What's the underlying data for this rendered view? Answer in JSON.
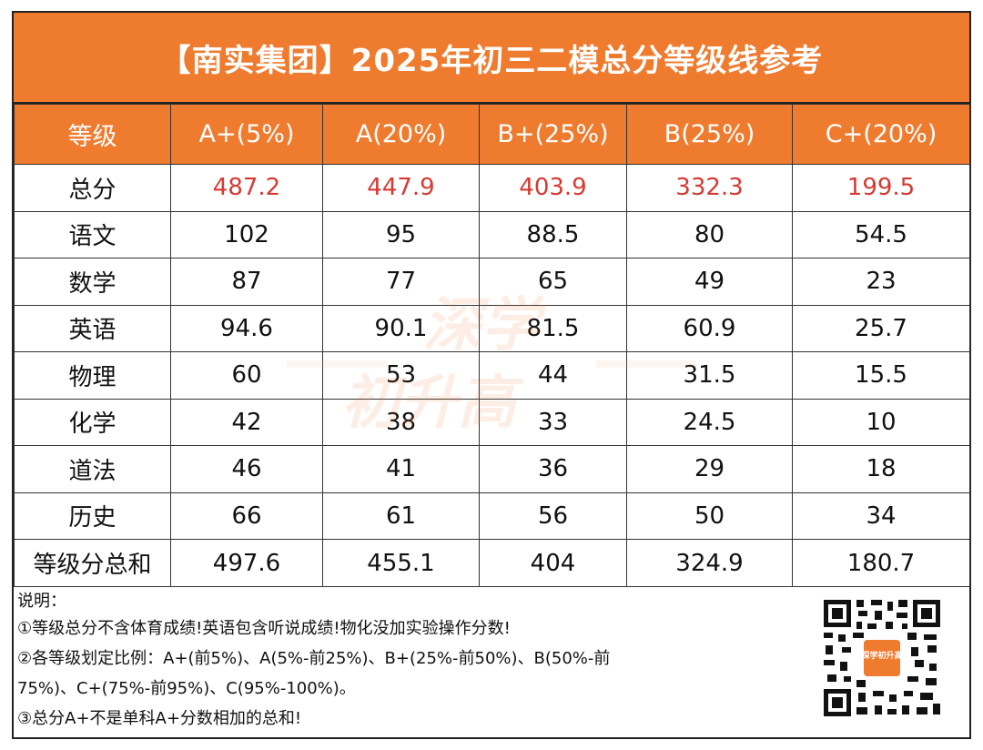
{
  "title": "【南实集团】2025年初三二模总分等级线参考",
  "header": {
    "label": "等级",
    "grades": [
      "A+(5%)",
      "A(20%)",
      "B+(25%)",
      "B(25%)",
      "C+(20%)"
    ]
  },
  "rows": [
    {
      "subject": "总分",
      "values": [
        "487.2",
        "447.9",
        "403.9",
        "332.3",
        "199.5"
      ]
    },
    {
      "subject": "语文",
      "values": [
        "102",
        "95",
        "88.5",
        "80",
        "54.5"
      ]
    },
    {
      "subject": "数学",
      "values": [
        "87",
        "77",
        "65",
        "49",
        "23"
      ]
    },
    {
      "subject": "英语",
      "values": [
        "94.6",
        "90.1",
        "81.5",
        "60.9",
        "25.7"
      ]
    },
    {
      "subject": "物理",
      "values": [
        "60",
        "53",
        "44",
        "31.5",
        "15.5"
      ]
    },
    {
      "subject": "化学",
      "values": [
        "42",
        "38",
        "33",
        "24.5",
        "10"
      ]
    },
    {
      "subject": "道法",
      "values": [
        "46",
        "41",
        "36",
        "29",
        "18"
      ]
    },
    {
      "subject": "历史",
      "values": [
        "66",
        "61",
        "56",
        "50",
        "34"
      ]
    },
    {
      "subject": "等级分总和",
      "values": [
        "497.6",
        "455.1",
        "404",
        "324.9",
        "180.7"
      ]
    }
  ],
  "notes": {
    "heading": "说明：",
    "line1": "①等级总分不含体育成绩!英语包含听说成绩!物化没加实验操作分数!",
    "line2a": "②各等级划定比例：A+(前5%)、A(5%-前25%)、B+(25%-前50%)、B(50%-前",
    "line2b": "75%)、C+(75%-前95%)、C(95%-100%)。",
    "line3": "③总分A+不是单科A+分数相加的总和!"
  },
  "qr_logo": "深学初升高",
  "watermark": {
    "line1": "深学",
    "line2": "初升高"
  },
  "colors": {
    "header_orange": "#ef7b2f",
    "total_red": "#d63a33",
    "border": "#333333"
  }
}
